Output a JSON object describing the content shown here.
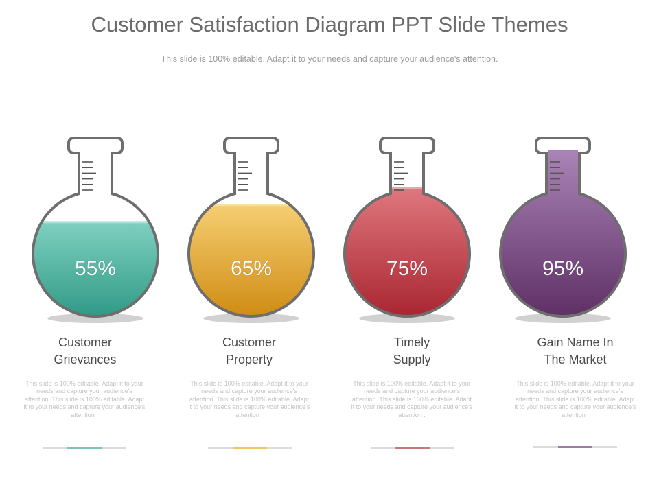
{
  "header": {
    "title": "Customer Satisfaction Diagram PPT Slide Themes",
    "subtitle": "This slide is 100% editable. Adapt it to your needs and capture your audience's attention."
  },
  "flasks": [
    {
      "percent_label": "55%",
      "fill_level": 0.55,
      "title_line1": "Customer",
      "title_line2": "Grievances",
      "description": "This slide is 100% editable. Adapt it to your needs and capture your audience's attention. This slide is 100% editable. Adapt it to your needs and capture your audience's attention .",
      "color_light": "#7fd0c0",
      "color_dark": "#2f9a86"
    },
    {
      "percent_label": "65%",
      "fill_level": 0.65,
      "title_line1": "Customer",
      "title_line2": "Property",
      "description": "This slide is 100% editable. Adapt it to your needs and capture your audience's attention. This slide is 100% editable. Adapt it to your needs and capture your audience's attention .",
      "color_light": "#f6cf73",
      "color_dark": "#cf8b12"
    },
    {
      "percent_label": "75%",
      "fill_level": 0.75,
      "title_line1": "Timely",
      "title_line2": "Supply",
      "description": "This slide is 100% editable. Adapt it to your needs and capture your audience's attention. This slide is 100% editable. Adapt it to your needs and capture your audience's attention .",
      "color_light": "#e0787f",
      "color_dark": "#a82530"
    },
    {
      "percent_label": "95%",
      "fill_level": 0.95,
      "title_line1": "Gain Name In",
      "title_line2": "The Market",
      "description": "This slide is 100% editable. Adapt it to your needs and capture your audience's attention. This slide is 100% editable. Adapt it to your needs and capture your audience's attention .",
      "color_light": "#a983b6",
      "color_dark": "#5e2f64"
    }
  ]
}
